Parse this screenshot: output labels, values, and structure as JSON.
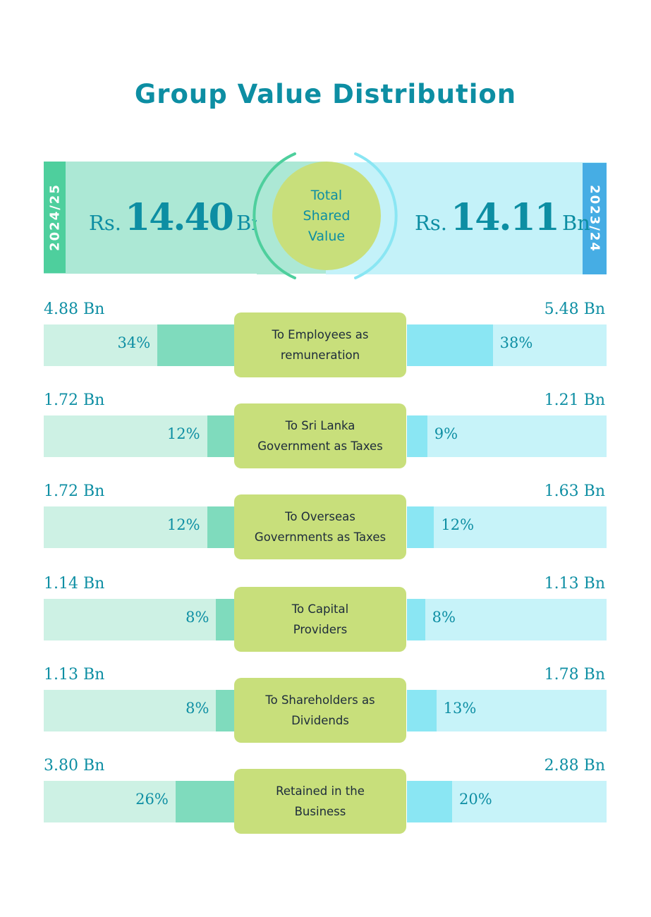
{
  "title": "Group Value Distribution",
  "header": {
    "left_year": "2024/25",
    "right_year": "2023/24",
    "left_value": {
      "prefix": "Rs.",
      "number": "14.40",
      "suffix": "Bn"
    },
    "right_value": {
      "prefix": "Rs.",
      "number": "14.11",
      "suffix": "Bn"
    },
    "center_label": "Total\nShared\nValue"
  },
  "colors": {
    "title": "#0d8ea3",
    "left_band": "#ace8d5",
    "left_tab": "#4ecf9d",
    "right_band": "#c4f2f9",
    "right_tab": "#46ade4",
    "center": "#c8df7b",
    "left_fill": "#7fdbbd",
    "right_fill": "#8ae6f3"
  },
  "chart_data": {
    "type": "bar",
    "series_labels": [
      "2024/25",
      "2023/24"
    ],
    "categories": [
      "To Employees as remuneration",
      "To Sri Lanka Government as Taxes",
      "To Overseas Governments as Taxes",
      "To Capital Providers",
      "To Shareholders as Dividends",
      "Retained in the Business"
    ],
    "rows": [
      {
        "label": "To Employees as\nremuneration",
        "left_amount": "4.88 Bn",
        "left_pct": 34,
        "right_amount": "5.48 Bn",
        "right_pct": 38
      },
      {
        "label": "To Sri Lanka\nGovernment as Taxes",
        "left_amount": "1.72 Bn",
        "left_pct": 12,
        "right_amount": "1.21 Bn",
        "right_pct": 9
      },
      {
        "label": "To Overseas\nGovernments as Taxes",
        "left_amount": "1.72 Bn",
        "left_pct": 12,
        "right_amount": "1.63 Bn",
        "right_pct": 12
      },
      {
        "label": "To Capital\nProviders",
        "left_amount": "1.14 Bn",
        "left_pct": 8,
        "right_amount": "1.13 Bn",
        "right_pct": 8
      },
      {
        "label": "To Shareholders as\nDividends",
        "left_amount": "1.13 Bn",
        "left_pct": 8,
        "right_amount": "1.78 Bn",
        "right_pct": 13
      },
      {
        "label": "Retained in the\nBusiness",
        "left_amount": "3.80 Bn",
        "left_pct": 26,
        "right_amount": "2.88 Bn",
        "right_pct": 20
      }
    ]
  }
}
